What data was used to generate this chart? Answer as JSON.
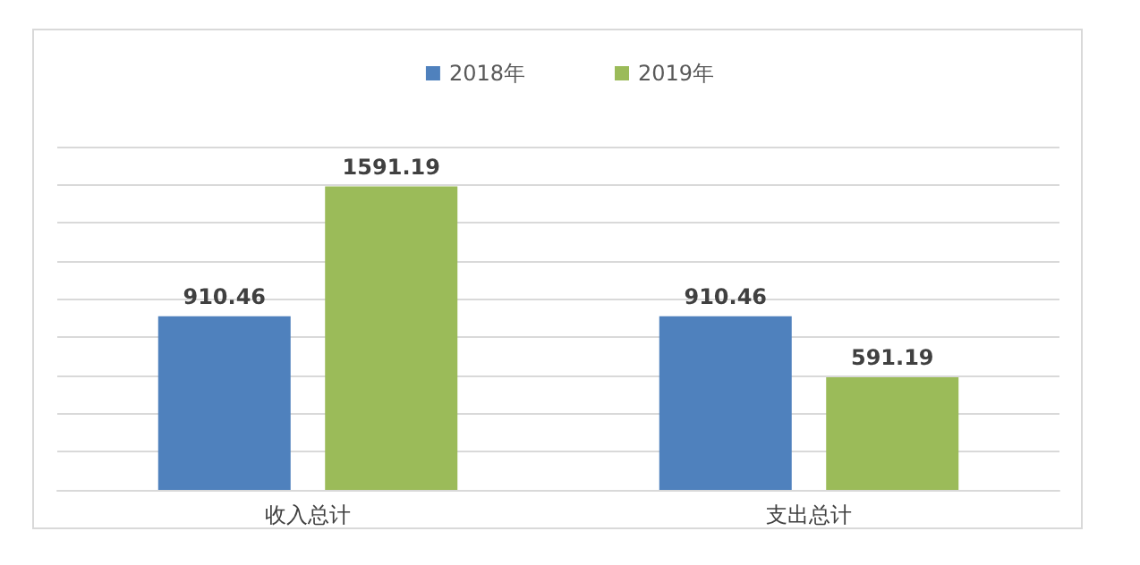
{
  "chart_data": {
    "type": "bar",
    "categories": [
      "收入总计",
      "支出总计"
    ],
    "series": [
      {
        "name": "2018年",
        "color": "#4f81bd",
        "values": [
          910.46,
          910.46
        ]
      },
      {
        "name": "2019年",
        "color": "#9bbb59",
        "values": [
          1591.19,
          591.19
        ]
      }
    ],
    "ylim": [
      0,
      1800
    ],
    "yticks": [
      {
        "value": 0,
        "label": null
      },
      {
        "value": 200,
        "label": null
      },
      {
        "value": 400,
        "label": null
      },
      {
        "value": 600,
        "label": null
      },
      {
        "value": 800,
        "label": null
      },
      {
        "value": 1000,
        "label": null
      },
      {
        "value": 1200,
        "label": null
      },
      {
        "value": 1400,
        "label": null
      },
      {
        "value": 1600,
        "label": null
      },
      {
        "value": 1800,
        "label": null
      }
    ],
    "tick_labels": "x",
    "grid": "y",
    "legend": "top",
    "data_labels": true
  }
}
